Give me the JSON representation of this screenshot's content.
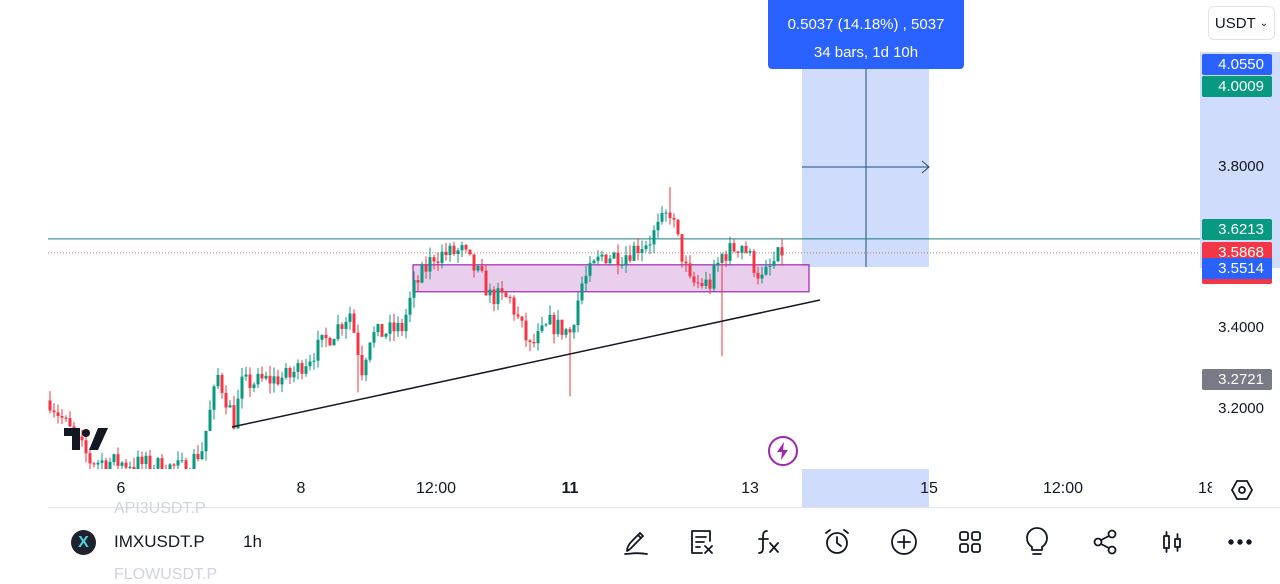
{
  "currency_selector": {
    "label": "USDT"
  },
  "measure_tooltip": {
    "line1": "0.5037 (14.18%) , 5037",
    "line2": "34 bars, 1d 10h"
  },
  "price_axis": {
    "ticks": [
      "3.8000",
      "3.4000",
      "3.2000"
    ],
    "labels": [
      {
        "value": "4.0550",
        "color": "#2962ff"
      },
      {
        "value": "4.0009",
        "color": "#089981"
      },
      {
        "value": "3.6213",
        "color": "#089981"
      },
      {
        "value": "3.5868",
        "color": "#f23645"
      },
      {
        "value": "3.5514",
        "color": "#2962ff"
      },
      {
        "value": "3.2721",
        "color": "#787b86"
      }
    ]
  },
  "time_axis": {
    "labels": [
      "6",
      "8",
      "12:00",
      "11",
      "13",
      "15",
      "12:00",
      "18"
    ]
  },
  "symbol_bar": {
    "prev_symbol": "API3USDT.P",
    "symbol": "IMXUSDT.P",
    "interval": "1h",
    "next_symbol": "FLOWUSDT.P"
  },
  "toolbar": {
    "icons": [
      "drawing-pen-icon",
      "clear-drawings-icon",
      "indicators-fx-icon",
      "alert-clock-icon",
      "add-plus-icon",
      "layouts-grid-icon",
      "ideas-lightbulb-icon",
      "share-icon",
      "chart-type-candles-icon",
      "more-icon"
    ]
  },
  "colors": {
    "up": "#089981",
    "down": "#f23645",
    "accent": "#2962ff",
    "zone": "#e1bee7",
    "zone_border": "#9c27b0"
  },
  "price_path": [
    [
      0,
      3.22
    ],
    [
      10,
      3.07
    ],
    [
      25,
      3.06
    ],
    [
      34,
      3.05
    ],
    [
      38,
      3.1
    ],
    [
      42,
      3.28
    ],
    [
      46,
      3.17
    ],
    [
      48,
      3.26
    ],
    [
      60,
      3.28
    ],
    [
      70,
      3.38
    ],
    [
      75,
      3.44
    ],
    [
      78,
      3.3
    ],
    [
      80,
      3.38
    ],
    [
      88,
      3.4
    ],
    [
      91,
      3.5
    ],
    [
      96,
      3.58
    ],
    [
      103,
      3.59
    ],
    [
      108,
      3.52
    ],
    [
      110,
      3.48
    ],
    [
      115,
      3.47
    ],
    [
      120,
      3.35
    ],
    [
      125,
      3.41
    ],
    [
      130,
      3.39
    ],
    [
      133,
      3.51
    ],
    [
      138,
      3.58
    ],
    [
      143,
      3.58
    ],
    [
      150,
      3.62
    ],
    [
      155,
      3.69
    ],
    [
      158,
      3.58
    ],
    [
      160,
      3.51
    ],
    [
      165,
      3.51
    ],
    [
      168,
      3.58
    ],
    [
      173,
      3.61
    ],
    [
      178,
      3.52
    ],
    [
      183,
      3.59
    ]
  ],
  "levels": {
    "resistance": 3.6213,
    "last": 3.5868,
    "zone": [
      3.49,
      3.557
    ]
  }
}
